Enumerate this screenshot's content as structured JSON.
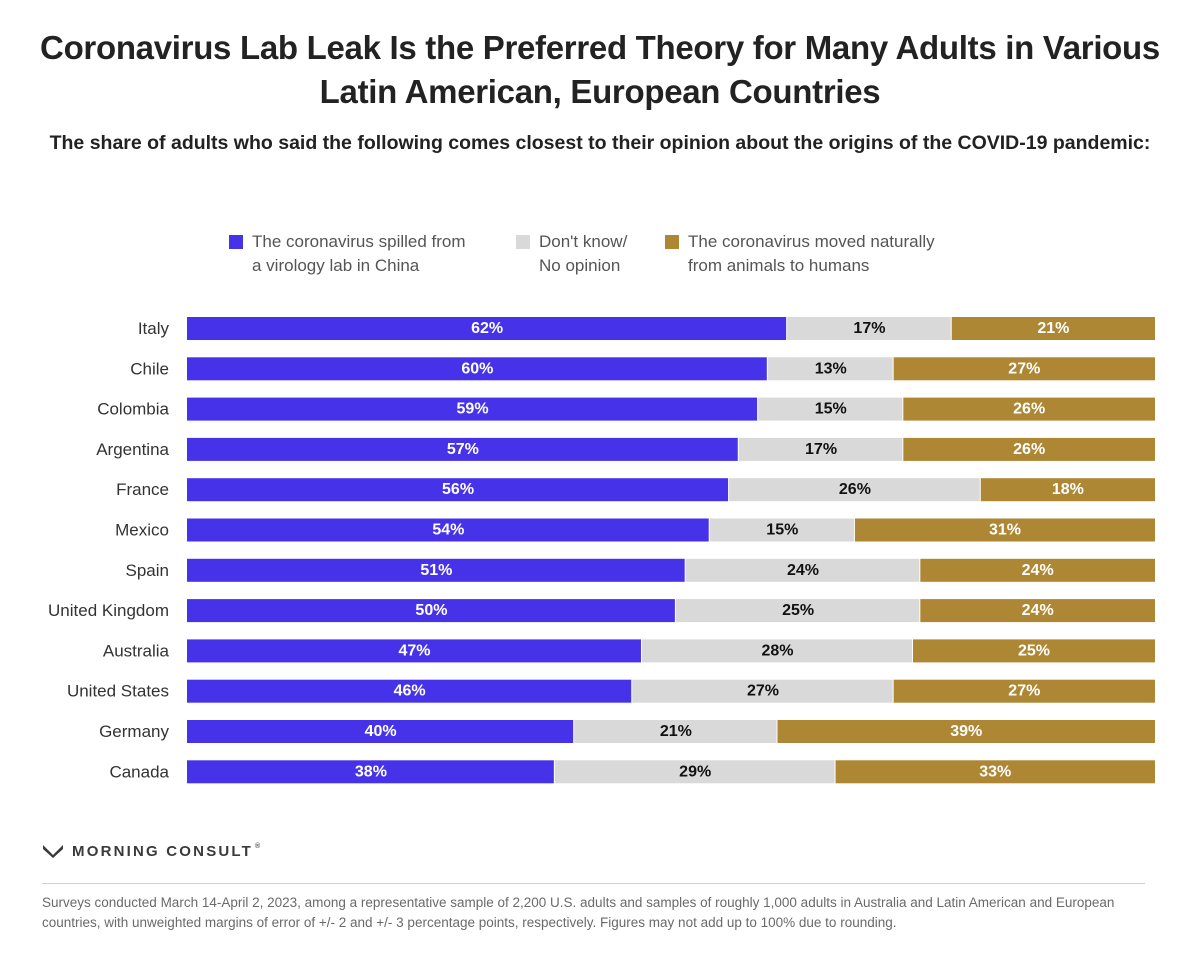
{
  "title": "Coronavirus Lab Leak Is the Preferred Theory for Many Adults in Various Latin American, European Countries",
  "subtitle": "The share of adults who said the following comes closest to their opinion about the origins of the COVID-19 pandemic:",
  "legend": [
    {
      "label": "The coronavirus spilled from\na virology lab in China",
      "color": "#4633e9"
    },
    {
      "label": "Don't know/\nNo opinion",
      "color": "#d9d9d9"
    },
    {
      "label": "The coronavirus moved naturally\nfrom animals to humans",
      "color": "#ae8734"
    }
  ],
  "chart_data": {
    "type": "bar",
    "orientation": "horizontal",
    "stacked": true,
    "categories": [
      "Italy",
      "Chile",
      "Colombia",
      "Argentina",
      "France",
      "Mexico",
      "Spain",
      "United Kingdom",
      "Australia",
      "United States",
      "Germany",
      "Canada"
    ],
    "series": [
      {
        "name": "The coronavirus spilled from a virology lab in China",
        "color": "#4633e9",
        "label_color": "#ffffff",
        "values": [
          62,
          60,
          59,
          57,
          56,
          54,
          51,
          50,
          47,
          46,
          40,
          38
        ]
      },
      {
        "name": "Don't know/No opinion",
        "color": "#d9d9d9",
        "label_color": "#111111",
        "values": [
          17,
          13,
          15,
          17,
          26,
          15,
          24,
          25,
          28,
          27,
          21,
          29
        ]
      },
      {
        "name": "The coronavirus moved naturally from animals to humans",
        "color": "#ae8734",
        "label_color": "#ffffff",
        "values": [
          21,
          27,
          26,
          26,
          18,
          31,
          24,
          24,
          25,
          27,
          39,
          33
        ]
      }
    ],
    "value_suffix": "%",
    "xlim": [
      0,
      100
    ]
  },
  "brand": {
    "name": "MORNING CONSULT",
    "mark": "®"
  },
  "footnote": "Surveys conducted March 14-April 2, 2023, among a representative sample of 2,200 U.S. adults and samples of roughly 1,000 adults in Australia and Latin American and European countries, with unweighted margins of error of +/- 2 and +/- 3 percentage points, respectively. Figures may not add up to 100% due to rounding."
}
